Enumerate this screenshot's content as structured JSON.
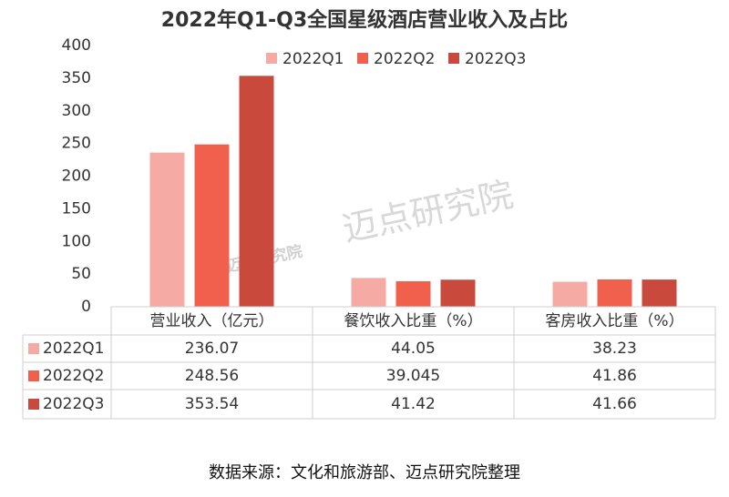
{
  "chart_data": {
    "type": "bar",
    "title": "2022年Q1-Q3全国星级酒店营业收入及占比",
    "categories": [
      "营业收入（亿元）",
      "餐饮收入比重（%）",
      "客房收入比重（%）"
    ],
    "series": [
      {
        "name": "2022Q1",
        "color": "#f5aba3",
        "values": [
          236.07,
          44.05,
          38.23
        ]
      },
      {
        "name": "2022Q2",
        "color": "#f1604c",
        "values": [
          248.56,
          39.045,
          41.86
        ]
      },
      {
        "name": "2022Q3",
        "color": "#c94a3c",
        "values": [
          353.54,
          41.42,
          41.66
        ]
      }
    ],
    "ylim": [
      0,
      400
    ],
    "yticks": [
      0,
      50,
      100,
      150,
      200,
      250,
      300,
      350,
      400
    ],
    "grid": false,
    "legend": "top",
    "watermark": "迈点研究院",
    "source": "数据来源：文化和旅游部、迈点研究院整理"
  }
}
